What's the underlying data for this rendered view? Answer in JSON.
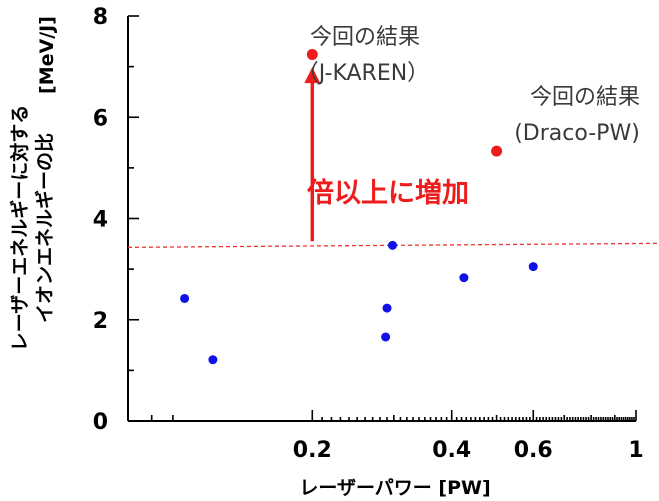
{
  "colors": {
    "baseline_series": "#1010e8",
    "this_result": "#ee1c1c",
    "reference_line": "#ee3333",
    "arrow": "#ee1c1c"
  },
  "chart_data": {
    "type": "scatter",
    "title": "",
    "xlabel": "レーザーパワー [PW]",
    "ylabel_line1": "レーザーエネルギーに対する",
    "ylabel_line2": "イオンエネルギーの比",
    "ylabel_unit": "[MeV/J]",
    "x_scale": "log",
    "xlim": [
      0.08,
      1.0
    ],
    "ylim": [
      0,
      8
    ],
    "x_ticks": [
      {
        "value": 0.2,
        "label": "0.2"
      },
      {
        "value": 0.4,
        "label": "0.4"
      },
      {
        "value": 0.6,
        "label": "0.6"
      },
      {
        "value": 1.0,
        "label": "1"
      }
    ],
    "y_ticks": [
      {
        "value": 0,
        "label": "0"
      },
      {
        "value": 2,
        "label": "2"
      },
      {
        "value": 4,
        "label": "4"
      },
      {
        "value": 6,
        "label": "6"
      },
      {
        "value": 8,
        "label": "8"
      }
    ],
    "grid": false,
    "series": [
      {
        "color": "#1010e8",
        "points": [
          {
            "x": 0.106,
            "y": 2.42
          },
          {
            "x": 0.122,
            "y": 1.21
          },
          {
            "x": 0.288,
            "y": 1.66
          },
          {
            "x": 0.29,
            "y": 2.23
          },
          {
            "x": 0.298,
            "y": 3.47
          },
          {
            "x": 0.425,
            "y": 2.83
          },
          {
            "x": 0.6,
            "y": 3.05
          }
        ]
      },
      {
        "color": "#ee1c1c",
        "points": [
          {
            "x": 0.2,
            "y": 7.24
          },
          {
            "x": 0.5,
            "y": 5.33
          }
        ]
      }
    ],
    "reference_line_y": 3.45,
    "arrow": {
      "x": 0.2,
      "y_from": 3.55,
      "y_to": 6.95
    },
    "annotations": {
      "jkaren_line1": "今回の結果",
      "jkaren_line2": "（J-KAREN）",
      "draco_line1": "今回の結果",
      "draco_line2": "(Draco-PW)",
      "increase": "倍以上に増加"
    }
  }
}
